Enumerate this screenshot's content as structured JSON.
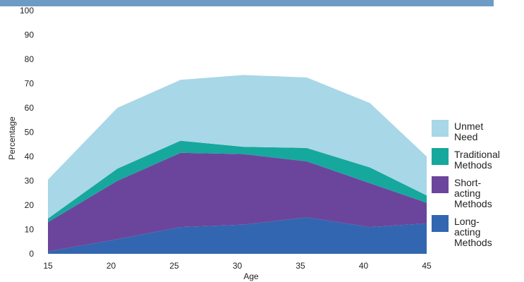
{
  "chart_data": {
    "type": "area",
    "stacked": true,
    "x": [
      15,
      20.5,
      25.5,
      30.5,
      35.5,
      40.5,
      45
    ],
    "xticks": [
      15,
      20,
      25,
      30,
      35,
      40,
      45
    ],
    "yticks": [
      0,
      10,
      20,
      30,
      40,
      50,
      60,
      70,
      80,
      90,
      100
    ],
    "xlim": [
      15,
      45
    ],
    "ylim": [
      0,
      100
    ],
    "xlabel": "Age",
    "ylabel": "Percentage",
    "grid": false,
    "legend_position": "right",
    "series": [
      {
        "name": "Long-acting Methods",
        "color": "#3366b0",
        "values": [
          1,
          6,
          11,
          12,
          15,
          11,
          12.5
        ]
      },
      {
        "name": "Short-acting Methods",
        "color": "#6b459c",
        "values": [
          12,
          24,
          30.5,
          29,
          23,
          18,
          8.5
        ]
      },
      {
        "name": "Traditional Methods",
        "color": "#16a89d",
        "values": [
          1.5,
          5,
          5,
          3,
          5.5,
          6.5,
          3
        ]
      },
      {
        "name": "Unmet Need",
        "color": "#a8d7e7",
        "values": [
          16,
          25,
          25,
          29.5,
          29,
          26.5,
          16
        ]
      }
    ],
    "legend_order": [
      "Unmet Need",
      "Traditional Methods",
      "Short-acting Methods",
      "Long-acting Methods"
    ]
  },
  "legend": [
    {
      "label": "Unmet Need",
      "color": "#a8d7e7"
    },
    {
      "label": "Traditional Methods",
      "color": "#16a89d"
    },
    {
      "label": "Short-acting Methods",
      "color": "#6b459c"
    },
    {
      "label": "Long-acting Methods",
      "color": "#3366b0"
    }
  ],
  "colors": {
    "top_bar": "#6e9bc5"
  }
}
